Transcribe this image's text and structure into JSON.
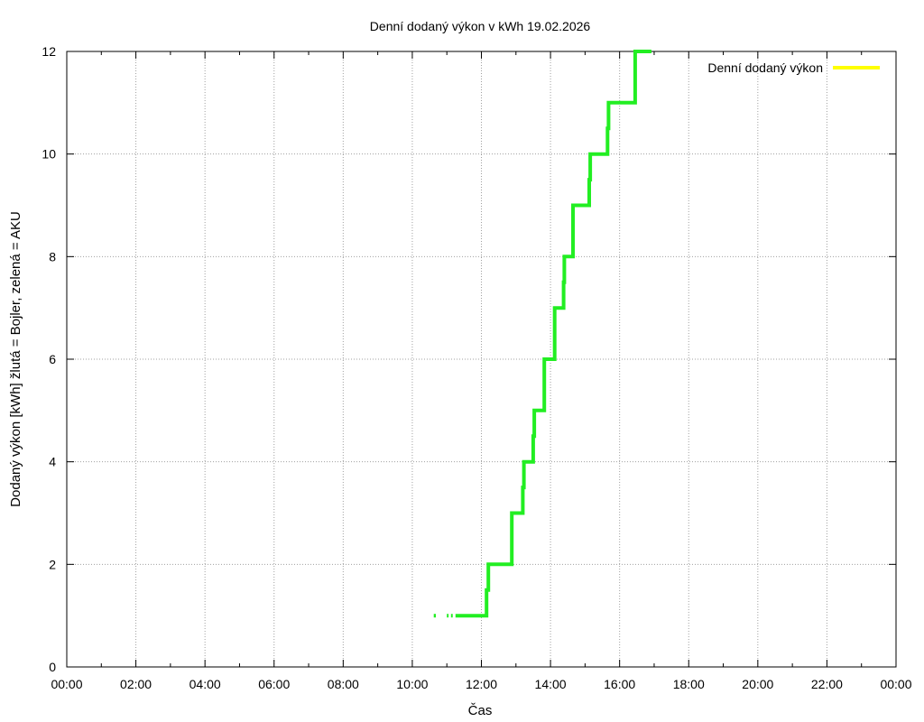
{
  "chart_data": {
    "type": "line",
    "title": "Denní dodaný výkon v kWh 19.02.2026",
    "xlabel": "Čas",
    "ylabel": "Dodaný výkon [kWh]  žlutá = Bojler, zelená = AKU",
    "xlim": [
      0,
      24
    ],
    "ylim": [
      0,
      12
    ],
    "x_ticks": [
      "00:00",
      "02:00",
      "04:00",
      "06:00",
      "08:00",
      "10:00",
      "12:00",
      "14:00",
      "16:00",
      "18:00",
      "20:00",
      "22:00",
      "00:00"
    ],
    "y_ticks": [
      "0",
      "2",
      "4",
      "6",
      "8",
      "10",
      "12"
    ],
    "grid": true,
    "legend_position": "top-right",
    "series": [
      {
        "name": "Denní dodaný výkon",
        "color": "#ffff00",
        "x": [],
        "y": []
      },
      {
        "color": "#22ee22",
        "x": [
          10.62,
          10.68,
          11.0,
          11.05,
          11.12,
          11.17,
          11.25,
          12.15,
          12.15,
          12.2,
          12.2,
          12.88,
          12.88,
          13.2,
          13.2,
          13.23,
          13.23,
          13.5,
          13.5,
          13.53,
          13.53,
          13.82,
          13.82,
          14.12,
          14.12,
          14.38,
          14.38,
          14.4,
          14.4,
          14.65,
          14.65,
          15.12,
          15.12,
          15.15,
          15.15,
          15.65,
          15.65,
          15.68,
          15.68,
          16.45,
          16.45,
          16.92
        ],
        "y": [
          1,
          1,
          1,
          1,
          1,
          1,
          1,
          1,
          1.5,
          1.5,
          2,
          2,
          3,
          3,
          3.5,
          3.5,
          4,
          4,
          4.5,
          4.5,
          5,
          5,
          6,
          6,
          7,
          7,
          7.5,
          7.5,
          8,
          8,
          9,
          9,
          9.5,
          9.5,
          10,
          10,
          10.5,
          10.5,
          11,
          11,
          12,
          12
        ],
        "gaps_after_index": [
          1,
          3,
          5
        ]
      }
    ]
  }
}
